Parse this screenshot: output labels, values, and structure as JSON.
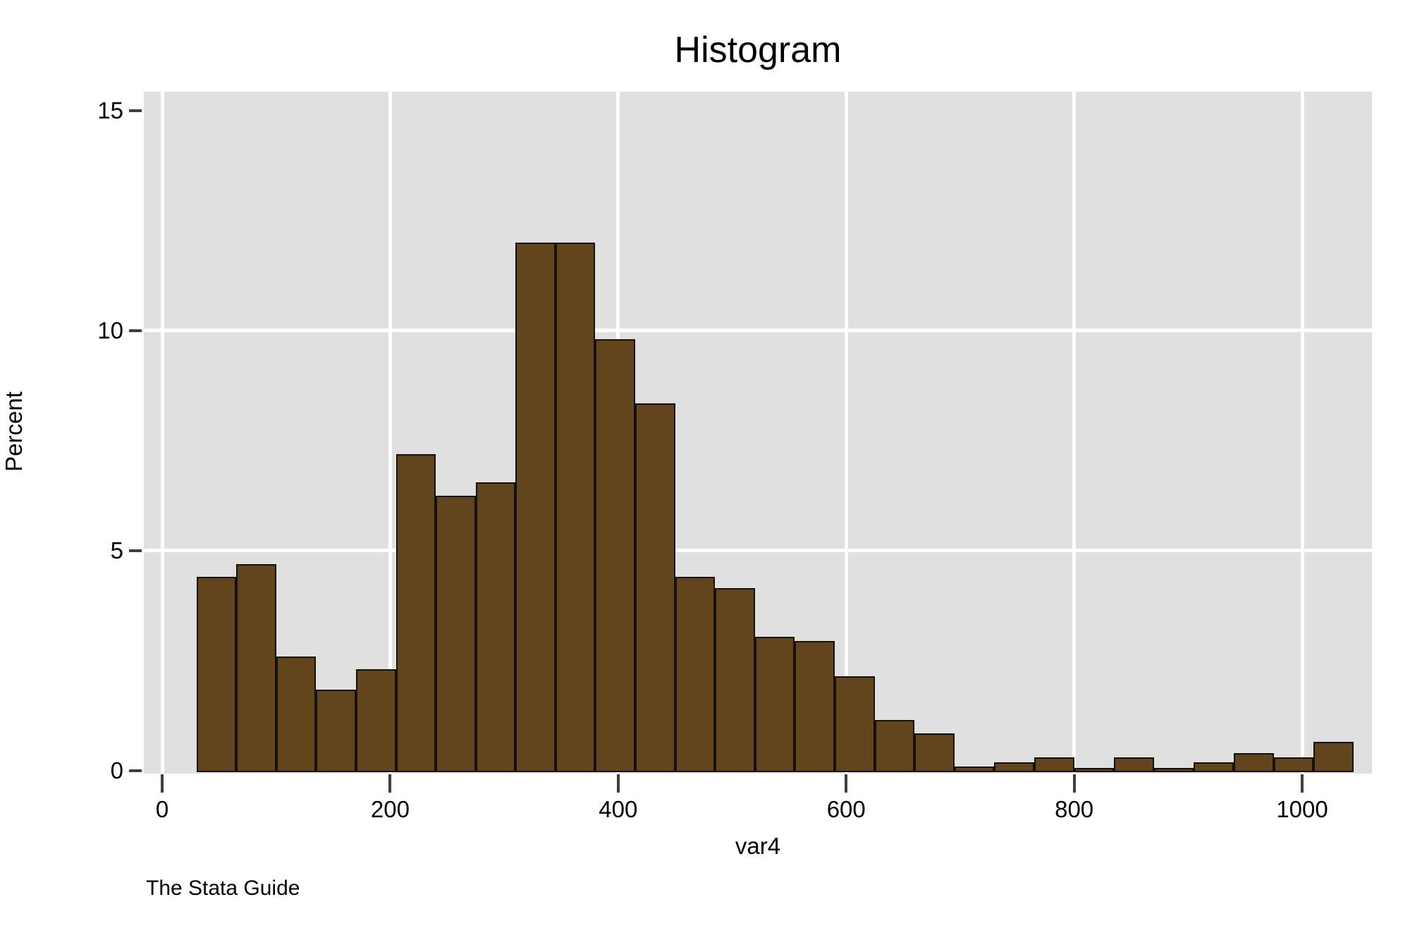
{
  "chart_data": {
    "type": "bar",
    "subtype": "histogram",
    "title": "Histogram",
    "xlabel": "var4",
    "ylabel": "Percent",
    "note": "The Stata Guide",
    "bin_start": 30,
    "bin_width": 35,
    "bin_edges": [
      30,
      65,
      100,
      135,
      170,
      205,
      240,
      275,
      310,
      345,
      380,
      415,
      450,
      485,
      520,
      555,
      590,
      625,
      660,
      695,
      730,
      765,
      800,
      835,
      870,
      905,
      940,
      975,
      1010,
      1045
    ],
    "values_percent": [
      4.4,
      4.7,
      2.6,
      1.85,
      2.3,
      7.2,
      6.25,
      6.55,
      12.0,
      12.0,
      9.8,
      8.35,
      4.4,
      4.15,
      3.05,
      2.95,
      2.15,
      1.15,
      0.85,
      0.1,
      0.2,
      0.3,
      0.07,
      0.3,
      0.07,
      0.2,
      0.4,
      0.3,
      0.65
    ],
    "x_ticks": [
      0,
      200,
      400,
      600,
      800,
      1000
    ],
    "y_ticks": [
      0,
      5,
      10,
      15
    ],
    "x_gridlines": [
      0,
      200,
      400,
      600,
      800,
      1000
    ],
    "y_gridlines": [
      5,
      10
    ],
    "xlim": [
      -16.1,
      1061.2
    ],
    "ylim": [
      -0.064,
      15.43
    ],
    "grid": true,
    "legend": false,
    "colors": {
      "bar_fill": "#63451d",
      "bar_outline": "#16100a",
      "plot_bg": "#e0e0e0",
      "grid": "#ffffff",
      "tick": "#3f3f3f",
      "text": "#000000",
      "page_bg": "#ffffff"
    }
  }
}
